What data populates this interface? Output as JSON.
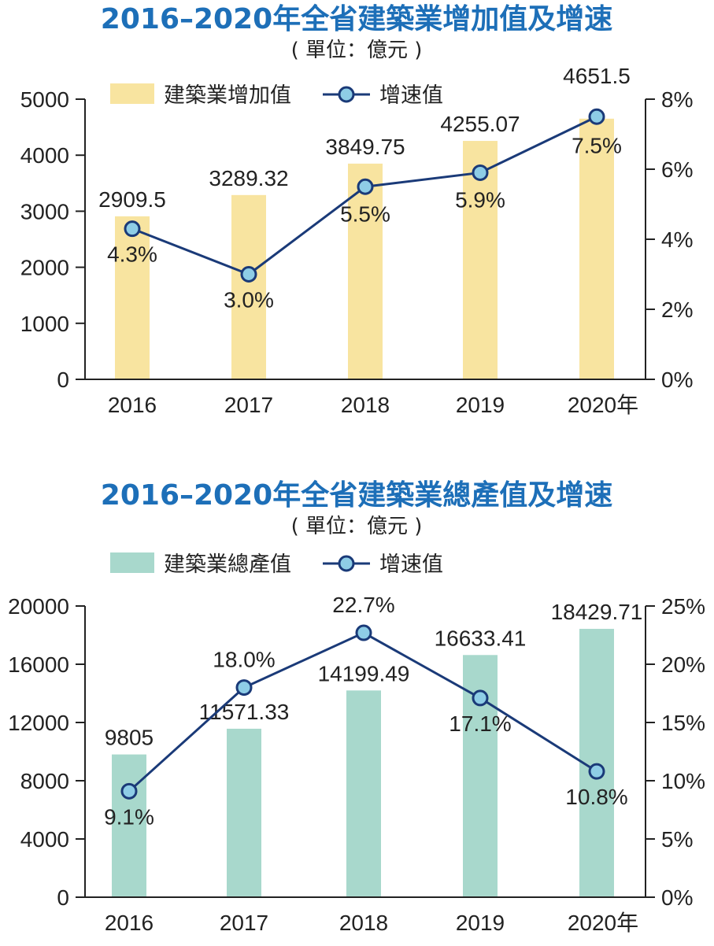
{
  "chart_data": [
    {
      "type": "bar",
      "title": "2016–2020年全省建築業增加值及增速",
      "unit": "( 單位：億元 )",
      "categories": [
        "2016",
        "2017",
        "2018",
        "2019",
        "2020年"
      ],
      "series": [
        {
          "name": "建築業增加值",
          "kind": "bar",
          "axis": "left",
          "values": [
            2909.5,
            3289.32,
            3849.75,
            4255.07,
            4651.5
          ],
          "labels": [
            "2909.5",
            "3289.32",
            "3849.75",
            "4255.07",
            "4651.5"
          ]
        },
        {
          "name": "增速值",
          "kind": "line",
          "axis": "right",
          "values": [
            4.3,
            3.0,
            5.5,
            5.9,
            7.5
          ],
          "labels": [
            "4.3%",
            "3.0%",
            "5.5%",
            "5.9%",
            "7.5%"
          ]
        }
      ],
      "ylim_left": [
        0,
        5000
      ],
      "ylim_right": [
        0,
        8
      ],
      "yticks_left": [
        "0",
        "1000",
        "2000",
        "3000",
        "4000",
        "5000"
      ],
      "yticks_right": [
        "0%",
        "2%",
        "4%",
        "6%",
        "8%"
      ],
      "legend": "top",
      "colors": {
        "bar": "#f8e4a0",
        "line": "#1a3a78",
        "marker": "#8ecde6"
      }
    },
    {
      "type": "bar",
      "title": "2016–2020年全省建築業總產值及增速",
      "unit": "( 單位：億元 )",
      "categories": [
        "2016",
        "2017",
        "2018",
        "2019",
        "2020年"
      ],
      "series": [
        {
          "name": "建築業總產值",
          "kind": "bar",
          "axis": "left",
          "values": [
            9805,
            11571.33,
            14199.49,
            16633.41,
            18429.71
          ],
          "labels": [
            "9805",
            "11571.33",
            "14199.49",
            "16633.41",
            "18429.71"
          ]
        },
        {
          "name": "增速值",
          "kind": "line",
          "axis": "right",
          "values": [
            9.1,
            18.0,
            22.7,
            17.1,
            10.8
          ],
          "labels": [
            "9.1%",
            "18.0%",
            "22.7%",
            "17.1%",
            "10.8%"
          ]
        }
      ],
      "ylim_left": [
        0,
        20000
      ],
      "ylim_right": [
        0,
        25
      ],
      "yticks_left": [
        "0",
        "4000",
        "8000",
        "12000",
        "16000",
        "20000"
      ],
      "yticks_right": [
        "0%",
        "5%",
        "10%",
        "15%",
        "20%",
        "25%"
      ],
      "legend": "top",
      "colors": {
        "bar": "#a8d8cc",
        "line": "#1a3a78",
        "marker": "#8ecde6"
      }
    }
  ]
}
